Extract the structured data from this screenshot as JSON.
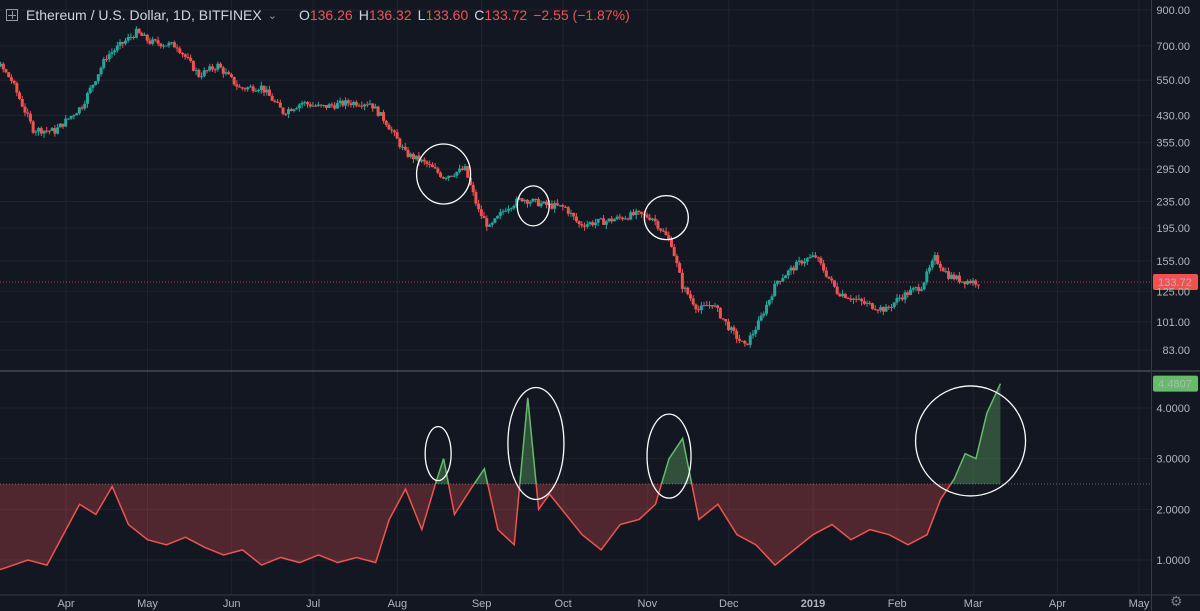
{
  "header": {
    "symbol": "Ethereum / U.S. Dollar, 1D, BITFINEX",
    "o_key": "O",
    "o_val": "136.26",
    "h_key": "H",
    "h_val": "136.32",
    "l_key": "L",
    "l_val": "133.60",
    "c_key": "C",
    "c_val": "133.72",
    "change": "−2.55 (−1.87%)"
  },
  "colors": {
    "up": "#26a69a",
    "down": "#ef5350",
    "background": "#131722",
    "oscillator_high": "#66bb6a",
    "oscillator_low": "#ef5350"
  },
  "icons": {
    "settings": "gear-icon",
    "symbol_menu": "chevron-down-icon",
    "add_symbol": "plus-square-icon"
  },
  "chart_data": [
    {
      "type": "candlestick",
      "title": "Ethereum / U.S. Dollar, 1D, BITFINEX",
      "scale": "log",
      "x_months": [
        "Apr",
        "May",
        "Jun",
        "Jul",
        "Aug",
        "Sep",
        "Oct",
        "Nov",
        "Dec",
        "2019",
        "Feb",
        "Mar",
        "Apr",
        "May"
      ],
      "y_ticks": [
        "900.00",
        "700.00",
        "550.00",
        "430.00",
        "355.00",
        "295.00",
        "235.00",
        "195.00",
        "155.00",
        "125.00",
        "101.00",
        "83.00"
      ],
      "last_price": "133.72",
      "close_path": [
        [
          "2018-03-01",
          740
        ],
        [
          "2018-03-10",
          700
        ],
        [
          "2018-03-20",
          550
        ],
        [
          "2018-03-28",
          390
        ],
        [
          "2018-04-05",
          385
        ],
        [
          "2018-04-15",
          460
        ],
        [
          "2018-04-24",
          650
        ],
        [
          "2018-05-05",
          770
        ],
        [
          "2018-05-10",
          720
        ],
        [
          "2018-05-20",
          700
        ],
        [
          "2018-05-28",
          570
        ],
        [
          "2018-06-04",
          610
        ],
        [
          "2018-06-12",
          520
        ],
        [
          "2018-06-20",
          525
        ],
        [
          "2018-06-28",
          440
        ],
        [
          "2018-07-05",
          470
        ],
        [
          "2018-07-12",
          455
        ],
        [
          "2018-07-22",
          470
        ],
        [
          "2018-07-30",
          470
        ],
        [
          "2018-08-05",
          410
        ],
        [
          "2018-08-12",
          330
        ],
        [
          "2018-08-20",
          305
        ],
        [
          "2018-08-26",
          280
        ],
        [
          "2018-09-03",
          295
        ],
        [
          "2018-09-08",
          220
        ],
        [
          "2018-09-12",
          195
        ],
        [
          "2018-09-18",
          225
        ],
        [
          "2018-09-24",
          240
        ],
        [
          "2018-10-02",
          230
        ],
        [
          "2018-10-10",
          225
        ],
        [
          "2018-10-15",
          200
        ],
        [
          "2018-10-25",
          205
        ],
        [
          "2018-11-05",
          215
        ],
        [
          "2018-11-11",
          210
        ],
        [
          "2018-11-18",
          175
        ],
        [
          "2018-11-22",
          130
        ],
        [
          "2018-11-28",
          110
        ],
        [
          "2018-12-03",
          115
        ],
        [
          "2018-12-10",
          95
        ],
        [
          "2018-12-15",
          85
        ],
        [
          "2018-12-20",
          100
        ],
        [
          "2018-12-27",
          135
        ],
        [
          "2019-01-05",
          155
        ],
        [
          "2019-01-10",
          160
        ],
        [
          "2019-01-18",
          125
        ],
        [
          "2019-01-28",
          115
        ],
        [
          "2019-02-05",
          110
        ],
        [
          "2019-02-10",
          120
        ],
        [
          "2019-02-18",
          130
        ],
        [
          "2019-02-23",
          158
        ],
        [
          "2019-02-28",
          140
        ],
        [
          "2019-03-05",
          135
        ],
        [
          "2019-03-11",
          133.72
        ]
      ]
    },
    {
      "type": "area",
      "y_ticks": [
        "4.0000",
        "3.0000",
        "2.0000",
        "1.0000"
      ],
      "threshold": 2.5,
      "last_value": "4.4807",
      "x": [
        "2018-03-01",
        "2018-03-10",
        "2018-03-18",
        "2018-03-25",
        "2018-04-02",
        "2018-04-06",
        "2018-04-12",
        "2018-04-18",
        "2018-04-24",
        "2018-05-01",
        "2018-05-08",
        "2018-05-15",
        "2018-05-22",
        "2018-05-29",
        "2018-06-05",
        "2018-06-12",
        "2018-06-19",
        "2018-06-26",
        "2018-07-03",
        "2018-07-10",
        "2018-07-17",
        "2018-07-24",
        "2018-07-29",
        "2018-08-04",
        "2018-08-10",
        "2018-08-15",
        "2018-08-18",
        "2018-08-22",
        "2018-08-28",
        "2018-09-02",
        "2018-09-07",
        "2018-09-13",
        "2018-09-18",
        "2018-09-22",
        "2018-09-26",
        "2018-10-02",
        "2018-10-08",
        "2018-10-15",
        "2018-10-22",
        "2018-10-29",
        "2018-11-04",
        "2018-11-09",
        "2018-11-14",
        "2018-11-20",
        "2018-11-27",
        "2018-12-04",
        "2018-12-11",
        "2018-12-18",
        "2018-12-25",
        "2019-01-01",
        "2019-01-08",
        "2019-01-15",
        "2019-01-22",
        "2019-01-29",
        "2019-02-05",
        "2019-02-12",
        "2019-02-17",
        "2019-02-22",
        "2019-02-26",
        "2019-03-02",
        "2019-03-06",
        "2019-03-11"
      ],
      "values": [
        0.7,
        0.85,
        1.0,
        0.9,
        1.7,
        2.1,
        1.9,
        2.45,
        1.7,
        1.4,
        1.3,
        1.45,
        1.25,
        1.1,
        1.2,
        0.9,
        1.05,
        0.95,
        1.1,
        0.95,
        1.05,
        0.95,
        1.8,
        2.4,
        1.6,
        2.5,
        3.0,
        1.9,
        2.4,
        2.8,
        1.6,
        1.3,
        4.2,
        2.0,
        2.3,
        1.9,
        1.5,
        1.2,
        1.7,
        1.8,
        2.1,
        3.0,
        3.4,
        1.8,
        2.1,
        1.5,
        1.3,
        0.9,
        1.2,
        1.5,
        1.7,
        1.4,
        1.6,
        1.5,
        1.3,
        1.5,
        2.2,
        2.6,
        3.1,
        3.0,
        3.9,
        4.4807
      ]
    }
  ]
}
